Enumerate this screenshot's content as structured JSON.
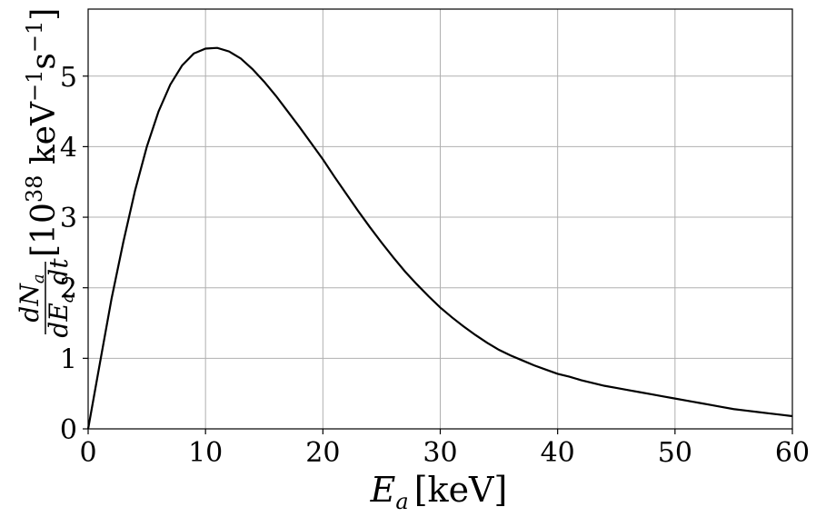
{
  "chart_data": {
    "type": "line",
    "xlabel": {
      "var": "E",
      "sub": "a",
      "unit": "[keV]"
    },
    "ylabel": {
      "num_var": "dN",
      "num_sub": "a",
      "den_var": "dE",
      "den_sub": "a",
      "den_tail": " dt",
      "unit_open": "[10",
      "unit_exp1": "38",
      "unit_mid": " keV",
      "unit_exp2": "−1",
      "unit_s": "s",
      "unit_exp3": "−1",
      "unit_close": "]"
    },
    "xlim": [
      0,
      60
    ],
    "ylim": [
      0,
      5.95
    ],
    "xticks": [
      0,
      10,
      20,
      30,
      40,
      50,
      60
    ],
    "yticks": [
      0,
      1,
      2,
      3,
      4,
      5
    ],
    "xtick_labels": [
      "0",
      "10",
      "20",
      "30",
      "40",
      "50",
      "60"
    ],
    "ytick_labels": [
      "0",
      "1",
      "2",
      "3",
      "4",
      "5"
    ],
    "grid": true,
    "line_color": "#000000",
    "grid_color": "#b0b0b0",
    "series": [
      {
        "x": [
          0,
          1,
          2,
          3,
          4,
          5,
          6,
          7,
          8,
          9,
          10,
          11,
          12,
          13,
          14,
          15,
          16,
          17,
          18,
          19,
          20,
          21,
          22,
          23,
          24,
          25,
          26,
          27,
          28,
          29,
          30,
          31,
          32,
          33,
          34,
          35,
          36,
          37,
          38,
          39,
          40,
          41,
          42,
          43,
          44,
          45,
          46,
          47,
          48,
          49,
          50,
          51,
          52,
          53,
          54,
          55,
          56,
          57,
          58,
          59,
          60
        ],
        "y": [
          0,
          0.93,
          1.85,
          2.65,
          3.38,
          4.0,
          4.5,
          4.88,
          5.15,
          5.32,
          5.39,
          5.4,
          5.35,
          5.25,
          5.1,
          4.92,
          4.72,
          4.5,
          4.28,
          4.05,
          3.82,
          3.57,
          3.33,
          3.09,
          2.86,
          2.64,
          2.43,
          2.23,
          2.05,
          1.88,
          1.72,
          1.58,
          1.45,
          1.33,
          1.22,
          1.12,
          1.04,
          0.97,
          0.9,
          0.84,
          0.78,
          0.74,
          0.69,
          0.65,
          0.61,
          0.58,
          0.55,
          0.52,
          0.49,
          0.46,
          0.43,
          0.4,
          0.37,
          0.34,
          0.31,
          0.28,
          0.26,
          0.24,
          0.22,
          0.2,
          0.18
        ]
      }
    ]
  }
}
